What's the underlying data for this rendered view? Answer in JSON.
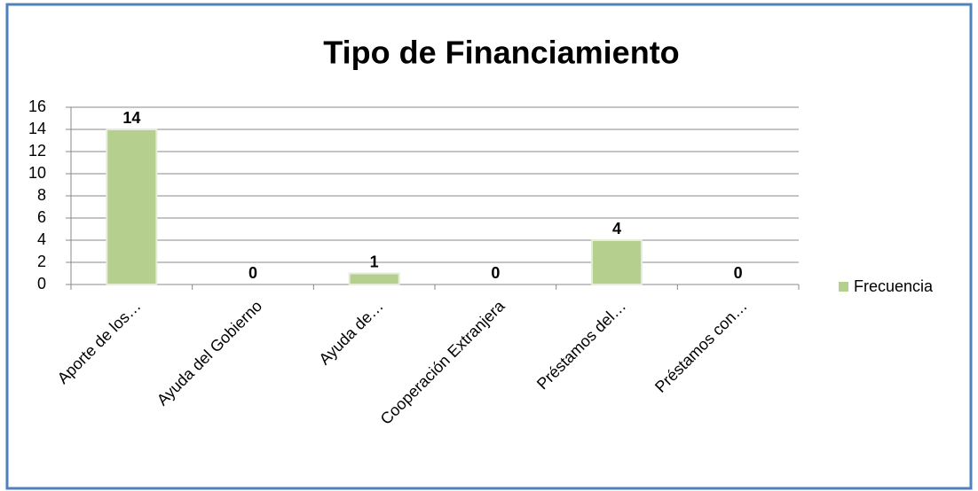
{
  "chart_data": {
    "type": "bar",
    "title": "Tipo de Financiamiento",
    "categories": [
      "Aporte de los…",
      "Ayuda del Gobierno",
      "Ayuda de…",
      "Cooperación Extranjera",
      "Préstamos del…",
      "Préstamos con…"
    ],
    "series": [
      {
        "name": "Frecuencia",
        "color": "#b5cf8e",
        "values": [
          14,
          0,
          1,
          0,
          4,
          0
        ]
      }
    ],
    "ylim": [
      0,
      16
    ],
    "yticks": [
      0,
      2,
      4,
      6,
      8,
      10,
      12,
      14,
      16
    ],
    "grid": true,
    "legend": "right"
  }
}
